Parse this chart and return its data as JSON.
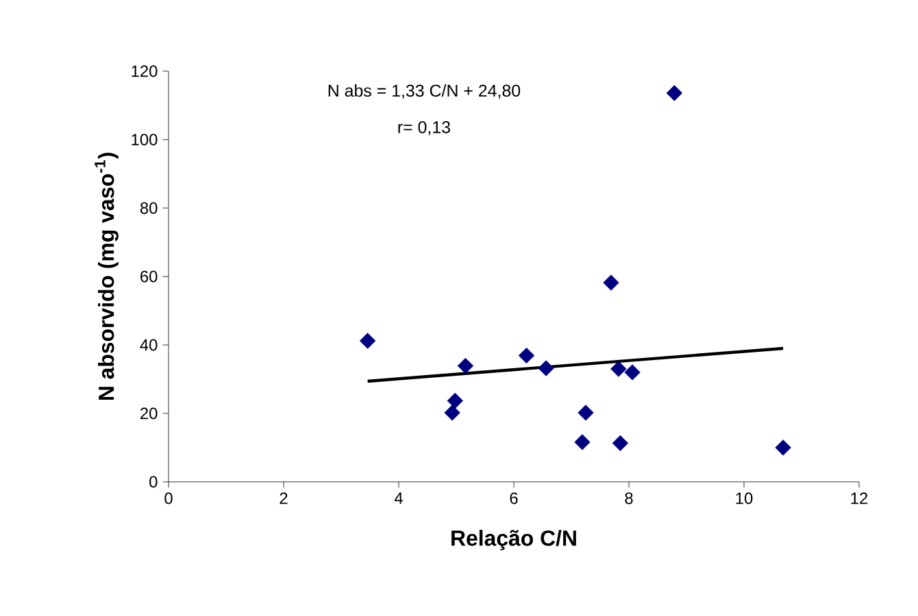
{
  "chart_data": {
    "type": "scatter",
    "xlabel": "Relação C/N",
    "ylabel": "N absorvido (mg vaso$^{-1}$)",
    "annotations": [
      "N abs = 1,33 C/N + 24,80",
      "r= 0,13"
    ],
    "xlim": [
      0,
      12
    ],
    "xticks": [
      0,
      2,
      4,
      6,
      8,
      10,
      12
    ],
    "ylim": [
      0,
      120
    ],
    "yticks": [
      0,
      20,
      40,
      60,
      80,
      100,
      120
    ],
    "grid": false,
    "marker": "diamond",
    "series": [
      {
        "color": "#000080",
        "x": [
          3.46,
          4.98,
          4.93,
          5.16,
          6.22,
          6.56,
          7.25,
          7.19,
          7.69,
          7.82,
          8.06,
          7.85,
          8.79,
          10.68
        ],
        "values": [
          41.2,
          23.7,
          20.2,
          33.9,
          36.9,
          33.2,
          20.2,
          11.6,
          58.2,
          33.0,
          32.0,
          11.3,
          113.6,
          10.0
        ]
      },
      {
        "type": "line",
        "marker": "none",
        "color": "#000000",
        "x": [
          3.46,
          10.68
        ],
        "values": [
          29.4,
          39.0
        ]
      }
    ]
  }
}
